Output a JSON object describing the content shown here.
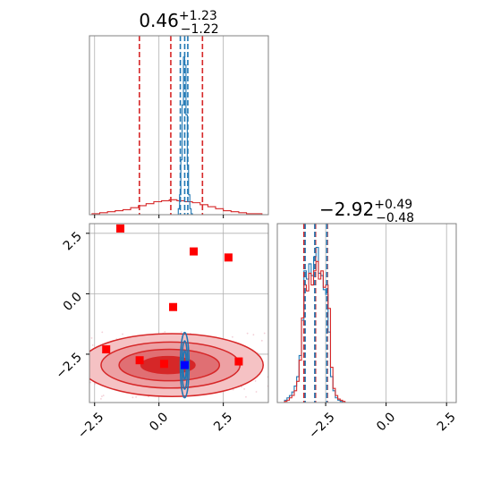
{
  "chart_data": {
    "type": "corner",
    "colors": {
      "red": "#d62728",
      "blue": "#1f77b4",
      "marker_red": "#ff0000",
      "marker_blue": "#0000ff",
      "grid": "#b0b0b0"
    },
    "panels": [
      {
        "id": "param1-hist",
        "type": "histogram",
        "title": {
          "value": "0.46",
          "sup": "+1.23",
          "sub": "−1.22"
        },
        "xlim": [
          -2.7,
          4.25
        ],
        "x_ticks": [
          -2.5,
          0.0,
          2.5
        ],
        "grid": true,
        "vlines_red": [
          -0.76,
          0.46,
          1.69
        ],
        "vlines_blue": [
          0.83,
          1.0,
          1.12
        ],
        "series": [
          {
            "name": "",
            "color": "red",
            "bins": [
              -2.6,
              -2.3,
              -2.0,
              -1.7,
              -1.4,
              -1.1,
              -0.8,
              -0.5,
              -0.2,
              0.1,
              0.4,
              0.7,
              1.0,
              1.3,
              1.6,
              1.9,
              2.2,
              2.5,
              2.8,
              3.1,
              3.4,
              3.7,
              4.0
            ],
            "counts": [
              1,
              2,
              3,
              4,
              5,
              7,
              9,
              11,
              13,
              14,
              15,
              14,
              13,
              12,
              10,
              8,
              6,
              4,
              3,
              2,
              1,
              1
            ]
          },
          {
            "name": "",
            "color": "blue",
            "bins": [
              0.7,
              0.75,
              0.8,
              0.85,
              0.9,
              0.95,
              1.0,
              1.05,
              1.1,
              1.15,
              1.2,
              1.25,
              1.3
            ],
            "counts": [
              0,
              6,
              20,
              55,
              110,
              158,
              150,
              100,
              50,
              20,
              6,
              1
            ]
          }
        ],
        "ymax": 165
      },
      {
        "id": "joint",
        "type": "contour",
        "xlim": [
          -2.7,
          4.25
        ],
        "ylim": [
          -4.5,
          2.9
        ],
        "x_ticks": [
          -2.5,
          0.0,
          2.5
        ],
        "x_tick_labels": [
          "−2.5",
          "0.0",
          "2.5"
        ],
        "y_ticks": [
          -2.5,
          0.0,
          2.5
        ],
        "y_tick_labels": [
          "−2.5",
          "0.0",
          "2.5"
        ],
        "grid": true,
        "red_contours": [
          {
            "cx": 0.5,
            "cy": -2.95,
            "rx": 3.55,
            "ry": 1.3
          },
          {
            "cx": 0.45,
            "cy": -2.95,
            "rx": 2.7,
            "ry": 0.95
          },
          {
            "cx": 0.4,
            "cy": -2.95,
            "rx": 1.95,
            "ry": 0.65
          },
          {
            "cx": 0.35,
            "cy": -2.95,
            "rx": 1.05,
            "ry": 0.35
          }
        ],
        "blue_contours": [
          {
            "cx": 1.0,
            "cy": -2.95,
            "rx": 0.17,
            "ry": 1.35
          },
          {
            "cx": 1.0,
            "cy": -2.95,
            "rx": 0.11,
            "ry": 1.0
          },
          {
            "cx": 1.0,
            "cy": -2.95,
            "rx": 0.06,
            "ry": 0.6
          }
        ],
        "red_markers": [
          [
            -1.5,
            2.7
          ],
          [
            1.35,
            1.75
          ],
          [
            2.7,
            1.5
          ],
          [
            0.55,
            -0.55
          ],
          [
            -2.05,
            -2.3
          ],
          [
            -0.75,
            -2.75
          ],
          [
            0.2,
            -2.9
          ],
          [
            3.1,
            -2.8
          ]
        ],
        "blue_markers": [
          [
            1.0,
            -2.95
          ]
        ]
      },
      {
        "id": "param2-hist",
        "type": "histogram",
        "title": {
          "value": "−2.92",
          "sup": "+0.49",
          "sub": "−0.48"
        },
        "xlim": [
          -4.5,
          2.9
        ],
        "x_ticks": [
          -2.5,
          0.0,
          2.5
        ],
        "x_tick_labels": [
          "−2.5",
          "0.0",
          "2.5"
        ],
        "grid": true,
        "vlines_red": [
          -3.4,
          -2.92,
          -2.43
        ],
        "vlines_blue": [
          -3.35,
          -2.95,
          -2.45
        ],
        "series": [
          {
            "name": "",
            "color": "red",
            "bins": [
              -4.3,
              -4.2,
              -4.1,
              -4.0,
              -3.9,
              -3.8,
              -3.7,
              -3.6,
              -3.5,
              -3.4,
              -3.3,
              -3.2,
              -3.1,
              -3.0,
              -2.9,
              -2.8,
              -2.7,
              -2.6,
              -2.5,
              -2.4,
              -2.3,
              -2.2,
              -2.1,
              -2.0,
              -1.9,
              -1.8,
              -1.7
            ],
            "counts": [
              0,
              1,
              2,
              4,
              6,
              10,
              18,
              36,
              72,
              100,
              95,
              110,
              100,
              112,
              120,
              105,
              112,
              98,
              100,
              80,
              30,
              12,
              6,
              3,
              2,
              1
            ]
          },
          {
            "name": "",
            "color": "blue",
            "bins": [
              -4.3,
              -4.2,
              -4.1,
              -4.0,
              -3.9,
              -3.8,
              -3.7,
              -3.6,
              -3.5,
              -3.4,
              -3.3,
              -3.2,
              -3.1,
              -3.0,
              -2.9,
              -2.8,
              -2.7,
              -2.6,
              -2.5,
              -2.4,
              -2.3,
              -2.2,
              -2.1,
              -2.0,
              -1.9,
              -1.8,
              -1.7
            ],
            "counts": [
              0,
              2,
              4,
              6,
              9,
              14,
              22,
              40,
              70,
              112,
              105,
              118,
              108,
              124,
              132,
              110,
              108,
              96,
              92,
              60,
              22,
              10,
              4,
              2,
              1,
              0
            ]
          }
        ],
        "ymax": 140
      }
    ]
  }
}
